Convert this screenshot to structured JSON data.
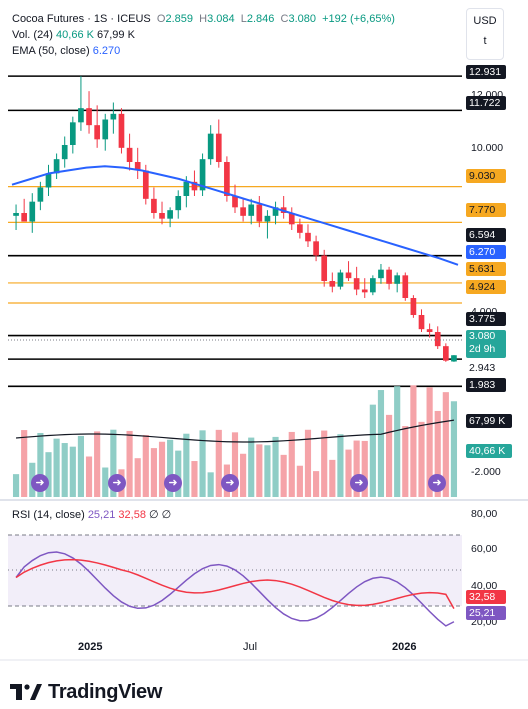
{
  "legend": {
    "symbol": "Cocoa Futures · 1S · ICEUS",
    "open_label": "O",
    "open": "2.859",
    "high_label": "H",
    "high": "3.084",
    "low_label": "L",
    "low": "2.846",
    "close_label": "C",
    "close": "3.080",
    "change": "+192 (+6,65%)",
    "vol_label": "Vol. (24)",
    "vol_a": "40,66 K",
    "vol_b": "67,99 K",
    "ema_label": "EMA (50, close)",
    "ema": "6.270"
  },
  "currency": {
    "code": "USD",
    "sub": "t"
  },
  "price_axis": {
    "ticks": [
      {
        "text": "12.000",
        "price": 12000
      },
      {
        "text": "10.000",
        "price": 10000
      },
      {
        "text": "4.000",
        "price": 4000
      },
      {
        "text": "-2.000",
        "price": -2000
      }
    ],
    "levels": [
      {
        "text": "12.931",
        "price": 12931,
        "style": "black",
        "line": "#000000"
      },
      {
        "text": "11.722",
        "price": 11722,
        "style": "black",
        "line": "#000000"
      },
      {
        "text": "9.030",
        "price": 9030,
        "style": "orange",
        "line": "#f6a821"
      },
      {
        "text": "7.770",
        "price": 7770,
        "style": "orange",
        "line": "#f6a821"
      },
      {
        "text": "6.594",
        "price": 6594,
        "style": "black",
        "line": "#000000"
      },
      {
        "text": "5.631",
        "price": 5631,
        "style": "orange",
        "line": "#f6a821"
      },
      {
        "text": "4.924",
        "price": 4924,
        "style": "orange",
        "line": "#f6a821"
      },
      {
        "text": "3.775",
        "price": 3775,
        "style": "black",
        "line": "#000000"
      },
      {
        "text": "2.943",
        "price": 2943,
        "style": "plain",
        "line": "#000000"
      },
      {
        "text": "1.983",
        "price": 1983,
        "style": "black",
        "line": "#000000"
      }
    ],
    "ema_tag": "6.270",
    "last_price": "3.080",
    "countdown": "2d 9h",
    "vol_ma_tag": "67,99 K",
    "vol_tag": "40,66 K"
  },
  "time_axis": [
    "2025",
    "Jul",
    "2026"
  ],
  "rsi": {
    "label": "RSI (14, close)",
    "rsi_value": "25,21",
    "ma_value": "32,58",
    "empty_a": "∅",
    "empty_b": "∅",
    "ticks": [
      "80,00",
      "60,00",
      "40,00",
      "20,00"
    ],
    "rsi_tag": "25,21",
    "ma_tag": "32,58"
  },
  "brand": "TradingView",
  "colors": {
    "up": "#089981",
    "down": "#f23645",
    "ema": "#2962ff",
    "vol_up": "#8fcdc6",
    "vol_down": "#f5a3a8",
    "rsi": "#7e57c2",
    "rsi_ma": "#f23645",
    "level_orange": "#f6a821"
  },
  "events_icon": "arrow-right-circle-icon",
  "chart_data": {
    "type": "candlestick",
    "interval": "1 week",
    "ylim": [
      1500,
      13500
    ],
    "candles_ohlc": [
      [
        8000,
        8400,
        7500,
        8100
      ],
      [
        8100,
        8600,
        7900,
        7800
      ],
      [
        7800,
        8800,
        7400,
        8500
      ],
      [
        8500,
        9200,
        8200,
        9000
      ],
      [
        9000,
        9800,
        8700,
        9500
      ],
      [
        9500,
        10200,
        9300,
        10000
      ],
      [
        10000,
        10800,
        9700,
        10500
      ],
      [
        10500,
        11500,
        10200,
        11300
      ],
      [
        11300,
        12931,
        11000,
        11800
      ],
      [
        11800,
        12400,
        10900,
        11200
      ],
      [
        11200,
        11900,
        10400,
        10700
      ],
      [
        10700,
        11600,
        10300,
        11400
      ],
      [
        11400,
        12000,
        10900,
        11600
      ],
      [
        11600,
        11800,
        10200,
        10400
      ],
      [
        10400,
        10900,
        9600,
        9900
      ],
      [
        9900,
        10400,
        9300,
        9600
      ],
      [
        9600,
        9800,
        8400,
        8600
      ],
      [
        8600,
        9000,
        7900,
        8100
      ],
      [
        8100,
        8500,
        7700,
        7900
      ],
      [
        7900,
        8300,
        7600,
        8200
      ],
      [
        8200,
        8900,
        7900,
        8700
      ],
      [
        8700,
        9400,
        8300,
        9200
      ],
      [
        9200,
        9600,
        8700,
        8900
      ],
      [
        8900,
        10200,
        8700,
        10000
      ],
      [
        10000,
        11200,
        9800,
        10900
      ],
      [
        10900,
        11400,
        9700,
        9900
      ],
      [
        9900,
        10100,
        8500,
        8700
      ],
      [
        8700,
        9100,
        8100,
        8300
      ],
      [
        8300,
        8600,
        7800,
        8000
      ],
      [
        8000,
        8600,
        7700,
        8400
      ],
      [
        8400,
        8700,
        7600,
        7800
      ],
      [
        7800,
        8200,
        7200,
        8000
      ],
      [
        8000,
        8500,
        7700,
        8300
      ],
      [
        8300,
        8700,
        7900,
        8100
      ],
      [
        8100,
        8300,
        7500,
        7700
      ],
      [
        7700,
        7900,
        7200,
        7400
      ],
      [
        7400,
        7700,
        6900,
        7100
      ],
      [
        7100,
        7300,
        6400,
        6600
      ],
      [
        6600,
        6800,
        5500,
        5700
      ],
      [
        5700,
        6000,
        5300,
        5500
      ],
      [
        5500,
        6100,
        5400,
        6000
      ],
      [
        6000,
        6400,
        5700,
        5800
      ],
      [
        5800,
        6200,
        5200,
        5400
      ],
      [
        5400,
        5800,
        5100,
        5300
      ],
      [
        5300,
        5900,
        5200,
        5800
      ],
      [
        5800,
        6300,
        5600,
        6100
      ],
      [
        6100,
        6200,
        5400,
        5600
      ],
      [
        5600,
        6000,
        5300,
        5900
      ],
      [
        5900,
        6000,
        5000,
        5100
      ],
      [
        5100,
        5200,
        4400,
        4500
      ],
      [
        4500,
        4700,
        3900,
        4000
      ],
      [
        4000,
        4200,
        3700,
        3900
      ],
      [
        3900,
        4100,
        3300,
        3400
      ],
      [
        3400,
        3500,
        2846,
        2888
      ],
      [
        2859,
        3084,
        2846,
        3080
      ]
    ],
    "ema_50": [
      9100,
      9300,
      9500,
      9600,
      9700,
      9750,
      9700,
      9600,
      9450,
      9300,
      9100,
      8900,
      8700,
      8500,
      8300,
      8100,
      7900,
      7700,
      7500,
      7300,
      7100,
      6900,
      6700,
      6500,
      6270
    ],
    "volume_last": "40,66 K",
    "volume_ma_last": "67,99 K",
    "rsi_last": 25.21,
    "rsi_ma_last": 32.58,
    "rsi_ylim": [
      15,
      85
    ],
    "x_labels": [
      "2025",
      "Jul",
      "2026"
    ]
  }
}
